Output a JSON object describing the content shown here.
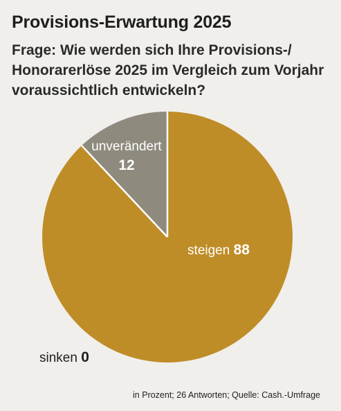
{
  "title": "Provisions-Erwartung 2025",
  "question": "Frage: Wie werden sich Ihre Provisions-/ Honorarerlöse 2025 im Vergleich zum Vorjahr voraussichtlich entwickeln?",
  "source": "in Prozent; 26 Antworten; Quelle: Cash.-Umfrage",
  "colors": {
    "background": "#f1efec",
    "steigen": "#bf8d27",
    "unveraendert": "#8e8a7d",
    "separator": "#ffffff",
    "label_light": "#ffffff",
    "label_dark": "#1e1e1e"
  },
  "chart_data": {
    "type": "pie",
    "title": "Provisions-Erwartung 2025",
    "start_angle_deg": 0,
    "direction": "clockwise",
    "slices": [
      {
        "label": "steigen",
        "value": 88,
        "color": "#bf8d27"
      },
      {
        "label": "sinken",
        "value": 0,
        "color": "#bf8d27"
      },
      {
        "label": "unverändert",
        "value": 12,
        "color": "#8e8a7d"
      }
    ]
  }
}
